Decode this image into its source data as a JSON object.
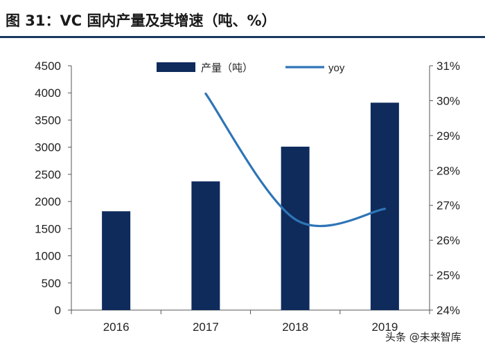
{
  "title": "图 31：VC 国内产量及其增速（吨、%）",
  "watermark": "头条 @未来智库",
  "colors": {
    "bar": "#0e2b5c",
    "line": "#2e75b6",
    "rule": "#17375e"
  },
  "chart_data": {
    "type": "bar",
    "categories": [
      "2016",
      "2017",
      "2018",
      "2019"
    ],
    "series": [
      {
        "name": "产量（吨）",
        "type": "bar",
        "axis": "left",
        "values": [
          1820,
          2370,
          3010,
          3820
        ]
      },
      {
        "name": "yoy",
        "type": "line",
        "axis": "right",
        "smooth": true,
        "values": [
          null,
          30.2,
          26.6,
          26.9
        ]
      }
    ],
    "ylim_left": [
      0,
      4500
    ],
    "ylim_right": [
      24,
      31
    ],
    "yticks_left": [
      "0",
      "500",
      "1000",
      "1500",
      "2000",
      "2500",
      "3000",
      "3500",
      "4000",
      "4500"
    ],
    "yticks_right": [
      "24%",
      "25%",
      "26%",
      "27%",
      "28%",
      "29%",
      "30%",
      "31%"
    ],
    "legend_position": "top-center",
    "grid": false
  }
}
